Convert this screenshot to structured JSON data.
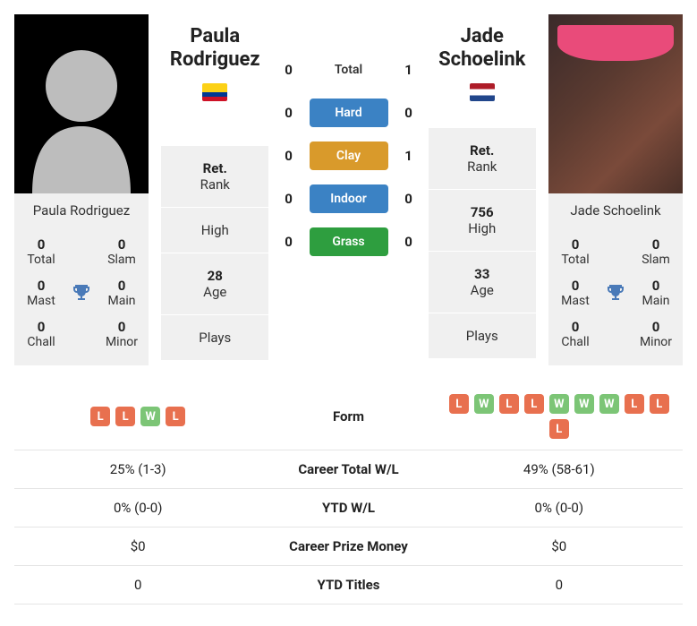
{
  "colors": {
    "card_bg": "#f0f0f0",
    "trophy": "#4a7ab8",
    "form_w": "#7cc576",
    "form_l": "#e8704f",
    "surface_hard": "#3b82c4",
    "surface_clay": "#d99a2b",
    "surface_indoor": "#3b82c4",
    "surface_grass": "#2e9e3f"
  },
  "h2h": {
    "rows": [
      {
        "label": "Total",
        "surface": false,
        "p1": "0",
        "p2": "1"
      },
      {
        "label": "Hard",
        "surface": true,
        "color_key": "surface_hard",
        "p1": "0",
        "p2": "0"
      },
      {
        "label": "Clay",
        "surface": true,
        "color_key": "surface_clay",
        "p1": "0",
        "p2": "1"
      },
      {
        "label": "Indoor",
        "surface": true,
        "color_key": "surface_indoor",
        "p1": "0",
        "p2": "0"
      },
      {
        "label": "Grass",
        "surface": true,
        "color_key": "surface_grass",
        "p1": "0",
        "p2": "0"
      }
    ]
  },
  "p1": {
    "name": "Paula Rodriguez",
    "first": "Paula",
    "last": "Rodriguez",
    "flag": "co",
    "titles": {
      "total": "0",
      "slam": "0",
      "mast": "0",
      "main": "0",
      "chall": "0",
      "minor": "0"
    },
    "rank": {
      "ret_label": "Ret.",
      "rank_label": "Rank",
      "high_val": "",
      "high_label": "High",
      "age_val": "28",
      "age_label": "Age",
      "plays_label": "Plays"
    },
    "form": [
      "L",
      "L",
      "W",
      "L"
    ]
  },
  "p2": {
    "name": "Jade Schoelink",
    "first": "Jade",
    "last": "Schoelink",
    "flag": "nl",
    "titles": {
      "total": "0",
      "slam": "0",
      "mast": "0",
      "main": "0",
      "chall": "0",
      "minor": "0"
    },
    "rank": {
      "ret_label": "Ret.",
      "rank_label": "Rank",
      "high_val": "756",
      "high_label": "High",
      "age_val": "33",
      "age_label": "Age",
      "plays_label": "Plays"
    },
    "form": [
      "L",
      "W",
      "L",
      "L",
      "W",
      "W",
      "W",
      "L",
      "L",
      "L"
    ]
  },
  "title_labels": {
    "total": "Total",
    "slam": "Slam",
    "mast": "Mast",
    "main": "Main",
    "chall": "Chall",
    "minor": "Minor"
  },
  "stats": {
    "rows": [
      {
        "label": "Form",
        "type": "form"
      },
      {
        "label": "Career Total W/L",
        "p1": "25% (1-3)",
        "p2": "49% (58-61)"
      },
      {
        "label": "YTD W/L",
        "p1": "0% (0-0)",
        "p2": "0% (0-0)"
      },
      {
        "label": "Career Prize Money",
        "p1": "$0",
        "p2": "$0"
      },
      {
        "label": "YTD Titles",
        "p1": "0",
        "p2": "0"
      }
    ]
  }
}
